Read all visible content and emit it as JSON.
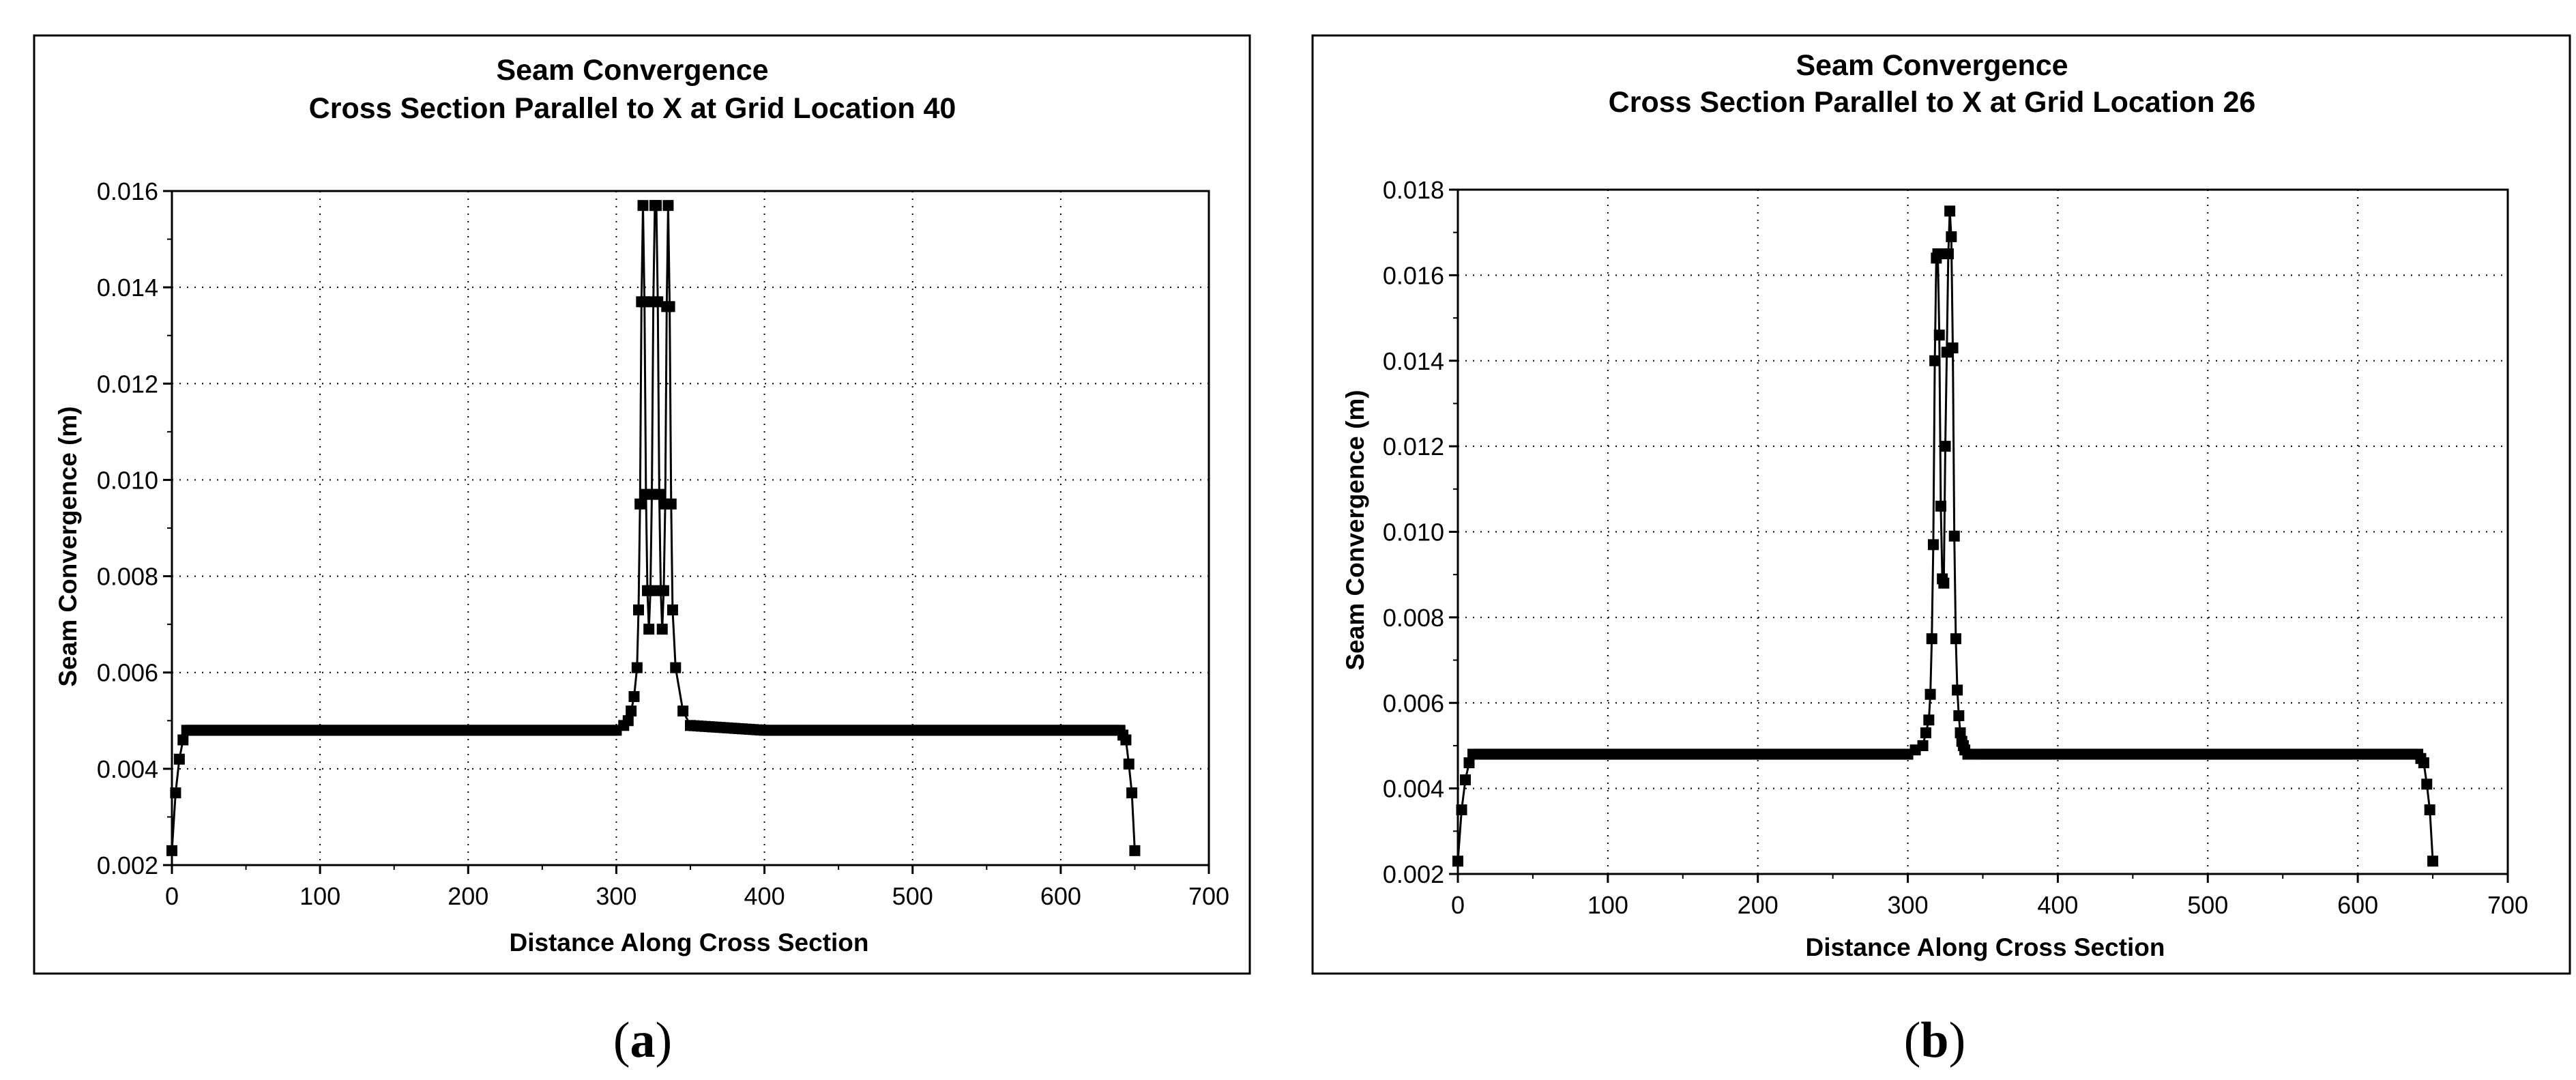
{
  "chart_data": [
    {
      "type": "line",
      "caption_letter": "a",
      "title": "Seam Convergence",
      "subtitle": "Cross Section Parallel to X at Grid Location 40",
      "xlabel": "Distance Along Cross Section",
      "ylabel": "Seam Convergence (m)",
      "xlim": [
        0,
        700
      ],
      "ylim": [
        0.002,
        0.016
      ],
      "xticks": [
        0,
        100,
        200,
        300,
        400,
        500,
        600,
        700
      ],
      "yticks": [
        0.002,
        0.004,
        0.006,
        0.008,
        0.01,
        0.012,
        0.014,
        0.016
      ],
      "xtick_labels": [
        "0",
        "100",
        "200",
        "300",
        "400",
        "500",
        "600",
        "700"
      ],
      "ytick_labels": [
        "0.002",
        "0.004",
        "0.006",
        "0.008",
        "0.010",
        "0.012",
        "0.014",
        "0.016"
      ],
      "grid": true,
      "legend": "none",
      "series": [
        {
          "x": [
            0,
            2.5,
            5,
            7.5,
            10,
            20,
            40,
            60,
            80,
            100,
            150,
            200,
            250,
            300,
            305,
            308,
            310,
            312,
            314,
            315,
            316,
            317,
            318,
            319,
            320,
            321,
            322,
            323,
            324,
            325,
            326,
            327,
            328,
            329,
            330,
            331,
            332,
            333,
            334,
            335,
            336,
            337,
            338,
            340,
            345,
            350,
            400,
            450,
            500,
            550,
            600,
            640,
            642,
            644,
            646,
            648,
            650
          ],
          "y": [
            0.0023,
            0.0035,
            0.0042,
            0.0046,
            0.0048,
            0.0048,
            0.0048,
            0.0048,
            0.0048,
            0.0048,
            0.0048,
            0.0048,
            0.0048,
            0.0048,
            0.0049,
            0.005,
            0.0052,
            0.0055,
            0.0061,
            0.0073,
            0.0095,
            0.0137,
            0.0157,
            0.0137,
            0.0097,
            0.0077,
            0.0069,
            0.0077,
            0.0097,
            0.0137,
            0.0157,
            0.0157,
            0.0137,
            0.0097,
            0.0077,
            0.0069,
            0.0077,
            0.0095,
            0.0136,
            0.0157,
            0.0136,
            0.0095,
            0.0073,
            0.0061,
            0.0052,
            0.0049,
            0.0048,
            0.0048,
            0.0048,
            0.0048,
            0.0048,
            0.0048,
            0.0047,
            0.0046,
            0.0041,
            0.0035,
            0.0023
          ]
        }
      ]
    },
    {
      "type": "line",
      "caption_letter": "b",
      "title": "Seam Convergence",
      "subtitle": "Cross Section Parallel to X at Grid Location 26",
      "xlabel": "Distance Along Cross Section",
      "ylabel": "Seam Convergence (m)",
      "xlim": [
        0,
        700
      ],
      "ylim": [
        0.002,
        0.018
      ],
      "xticks": [
        0,
        100,
        200,
        300,
        400,
        500,
        600,
        700
      ],
      "yticks": [
        0.002,
        0.004,
        0.006,
        0.008,
        0.01,
        0.012,
        0.014,
        0.016,
        0.018
      ],
      "xtick_labels": [
        "0",
        "100",
        "200",
        "300",
        "400",
        "500",
        "600",
        "700"
      ],
      "ytick_labels": [
        "0.002",
        "0.004",
        "0.006",
        "0.008",
        "0.010",
        "0.012",
        "0.014",
        "0.016",
        "0.018"
      ],
      "grid": true,
      "legend": "none",
      "series": [
        {
          "x": [
            0,
            2.5,
            5,
            7.5,
            10,
            20,
            40,
            60,
            80,
            100,
            150,
            200,
            250,
            300,
            305,
            310,
            312,
            314,
            315,
            316,
            317,
            318,
            319,
            320,
            321,
            322,
            323,
            324,
            325,
            326,
            327,
            328,
            329,
            330,
            331,
            332,
            333,
            334,
            335,
            336,
            337,
            338,
            340,
            345,
            350,
            400,
            450,
            500,
            550,
            600,
            640,
            642,
            644,
            646,
            648,
            650
          ],
          "y": [
            0.0023,
            0.0035,
            0.0042,
            0.0046,
            0.0048,
            0.0048,
            0.0048,
            0.0048,
            0.0048,
            0.0048,
            0.0048,
            0.0048,
            0.0048,
            0.0048,
            0.0049,
            0.005,
            0.0053,
            0.0056,
            0.0062,
            0.0075,
            0.0097,
            0.014,
            0.0164,
            0.0165,
            0.0146,
            0.0106,
            0.0089,
            0.0088,
            0.012,
            0.0142,
            0.0165,
            0.0175,
            0.0169,
            0.0143,
            0.0099,
            0.0075,
            0.0063,
            0.0057,
            0.0053,
            0.0051,
            0.005,
            0.0049,
            0.0048,
            0.0048,
            0.0048,
            0.0048,
            0.0048,
            0.0048,
            0.0048,
            0.0048,
            0.0048,
            0.0047,
            0.0046,
            0.0041,
            0.0035,
            0.0023
          ]
        }
      ]
    }
  ]
}
